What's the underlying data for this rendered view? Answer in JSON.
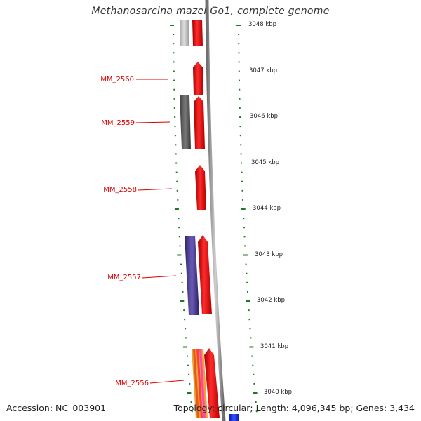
{
  "title": "Methanosarcina mazei Go1, complete genome",
  "accession": "Accession: NC_003901",
  "summary": "Topology: circular; Length: 4,096,345 bp; Genes: 3,434",
  "colors": {
    "backbone": "#8a8a8a",
    "tick": "#1e7a1e",
    "gene_label": "#dd0000",
    "gene_forward": "#ee0000",
    "feature_gray_light": "#bdbdbd",
    "feature_gray_dark": "#5a5a5a",
    "feature_purple": "#4b3d8f",
    "feature_orange": "#f0a030",
    "feature_blue": "#1a2ee0"
  },
  "scale": {
    "unit": "kbp",
    "labels": [
      "3048 kbp",
      "3047 kbp",
      "3046 kbp",
      "3045 kbp",
      "3044 kbp",
      "3043 kbp",
      "3042 kbp",
      "3041 kbp",
      "3040 kbp"
    ]
  },
  "genes": [
    {
      "label": "MM_2560"
    },
    {
      "label": "MM_2559"
    },
    {
      "label": "MM_2558"
    },
    {
      "label": "MM_2557"
    },
    {
      "label": "MM_2556"
    }
  ]
}
